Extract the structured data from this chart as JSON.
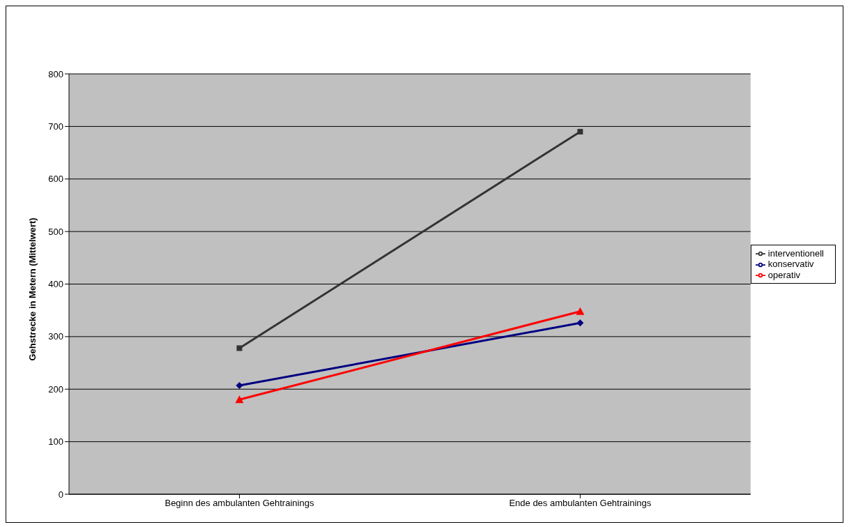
{
  "chart_data": {
    "type": "line",
    "ylabel": "Gehstrecke in Metern (Mittelwert)",
    "categories": [
      "Beginn des ambulanten Gehtrainings",
      "Ende des ambulanten Gehtrainings"
    ],
    "series": [
      {
        "name": "konservativ",
        "color": "#000080",
        "values": [
          207,
          326
        ],
        "marker": "diamond"
      },
      {
        "name": "interventionell",
        "color": "#333333",
        "values": [
          278,
          690
        ],
        "marker": "square"
      },
      {
        "name": "operativ",
        "color": "#ff0000",
        "values": [
          180,
          348
        ],
        "marker": "triangle"
      }
    ],
    "ylim": [
      0,
      800
    ],
    "yticks": [
      0,
      100,
      200,
      300,
      400,
      500,
      600,
      700,
      800
    ],
    "grid": "y",
    "legend": "right"
  }
}
